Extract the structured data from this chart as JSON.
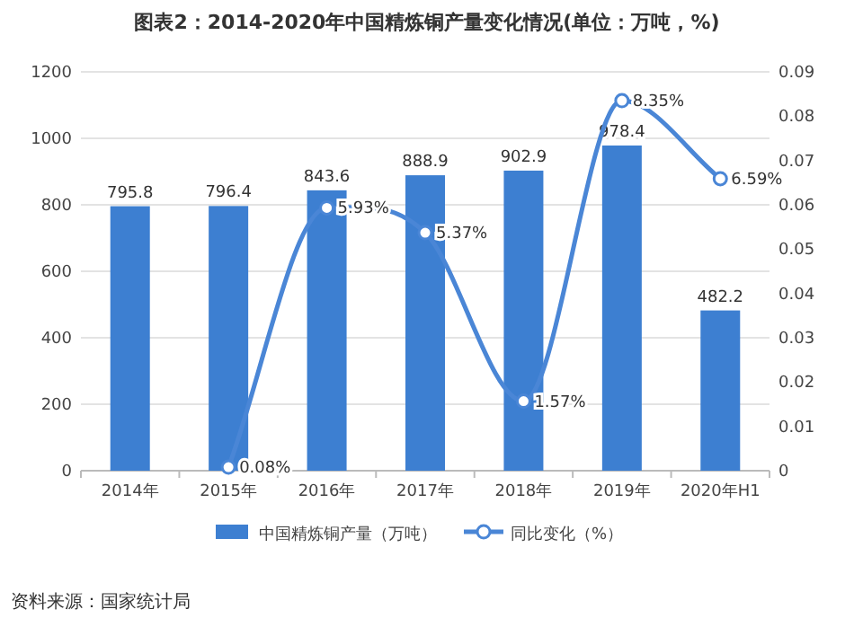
{
  "chart_data": {
    "type": "bar",
    "title": "图表2：2014-2020年中国精炼铜产量变化情况(单位：万吨，%)",
    "categories": [
      "2014年",
      "2015年",
      "2016年",
      "2017年",
      "2018年",
      "2019年",
      "2020年H1"
    ],
    "series": [
      {
        "name": "中国精炼铜产量（万吨）",
        "color": "#3d7fd1",
        "values": [
          795.8,
          796.4,
          843.6,
          888.9,
          902.9,
          978.4,
          482.2
        ],
        "value_labels": [
          "795.8",
          "796.4",
          "843.6",
          "888.9",
          "902.9",
          "978.4",
          "482.2"
        ]
      },
      {
        "name": "同比变化（%）",
        "type": "line",
        "axis": "y2",
        "color": "#4a86d6",
        "marker": "circle",
        "values": [
          null,
          0.0008,
          0.0593,
          0.0537,
          0.0157,
          0.0835,
          0.0659
        ],
        "value_labels": [
          null,
          "0.08%",
          "5.93%",
          "5.37%",
          "1.57%",
          "8.35%",
          "6.59%"
        ]
      }
    ],
    "ylim": [
      0,
      1200
    ],
    "yticks": [
      0,
      200,
      400,
      600,
      800,
      1000,
      1200
    ],
    "y2lim": [
      0,
      0.09
    ],
    "y2ticks": [
      0,
      0.01,
      0.02,
      0.03,
      0.04,
      0.05,
      0.06,
      0.07,
      0.08,
      0.09
    ],
    "grid": "y",
    "legend": "bottom",
    "annotations": [
      "资料来源：国家统计局"
    ]
  }
}
